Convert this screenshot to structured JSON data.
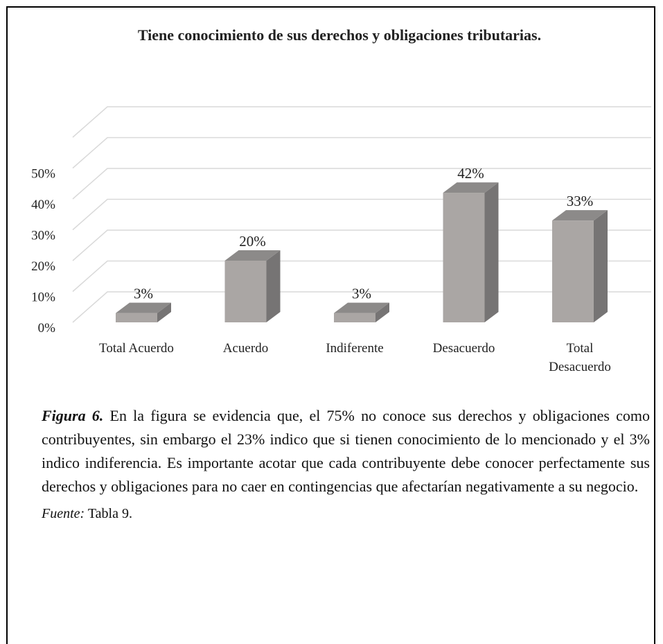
{
  "chart_data": {
    "type": "bar3d",
    "title": "Tiene conocimiento de sus derechos y obligaciones tributarias.",
    "categories": [
      "Total Acuerdo",
      "Acuerdo",
      "Indiferente",
      "Desacuerdo",
      "Total Desacuerdo"
    ],
    "values": [
      3,
      20,
      3,
      42,
      33
    ],
    "value_labels": [
      "3%",
      "20%",
      "3%",
      "42%",
      "33%"
    ],
    "ylim": [
      0,
      60
    ],
    "yticks": [
      {
        "value": 0,
        "label": "0%"
      },
      {
        "value": 10,
        "label": "10%"
      },
      {
        "value": 20,
        "label": "20%"
      },
      {
        "value": 30,
        "label": "30%"
      },
      {
        "value": 40,
        "label": "40%"
      },
      {
        "value": 50,
        "label": "50%"
      }
    ],
    "color": "#aaa6a4",
    "grid": true
  },
  "caption": {
    "label": "Figura 6.",
    "text": "En la figura se evidencia que, el 75% no conoce sus derechos y obligaciones como contribuyentes, sin embargo el 23% indico que si tienen conocimiento de lo mencionado y el 3% indico indiferencia. Es importante acotar que cada contribuyente debe conocer perfectamente sus derechos y obligaciones para no caer en contingencias que afectarían negativamente a su negocio."
  },
  "source": {
    "label": "Fuente:",
    "text": "Tabla 9."
  }
}
